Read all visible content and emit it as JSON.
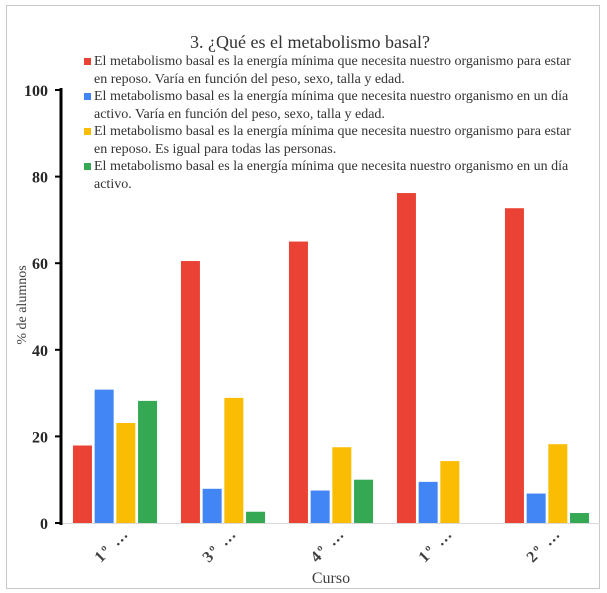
{
  "chart_data": {
    "type": "bar",
    "title": "3. ¿Qué es el metabolismo basal?",
    "xlabel": "Curso",
    "ylabel": "% de alumnos",
    "ylim": [
      0,
      100
    ],
    "yticks": [
      0,
      20,
      40,
      60,
      80,
      100
    ],
    "grid": false,
    "legend": "top",
    "categories": [
      "1º …",
      "3º …",
      "4º …",
      "1º …",
      "2º …"
    ],
    "series": [
      {
        "name": "El metabolismo basal es la energía mínima que necesita nuestro organismo para estar en reposo. Varía en función del peso, sexo, talla y edad.",
        "color": "#EA4335",
        "values": [
          17.9,
          60.5,
          65.0,
          76.2,
          72.7
        ]
      },
      {
        "name": "El metabolismo basal es la energía mínima que necesita nuestro organismo en un día activo. Varía en función del peso, sexo, talla y edad.",
        "color": "#4285F4",
        "values": [
          30.8,
          7.9,
          7.5,
          9.5,
          6.8
        ]
      },
      {
        "name": "El metabolismo basal es la energía mínima que necesita nuestro organismo para estar en reposo. Es igual para todas las personas.",
        "color": "#FBBC04",
        "values": [
          23.1,
          28.9,
          17.5,
          14.3,
          18.2
        ]
      },
      {
        "name": "El metabolismo basal es la energía mínima que necesita nuestro organismo en un día activo.",
        "color": "#34A853",
        "values": [
          28.2,
          2.6,
          10.0,
          0,
          2.3
        ]
      }
    ]
  }
}
